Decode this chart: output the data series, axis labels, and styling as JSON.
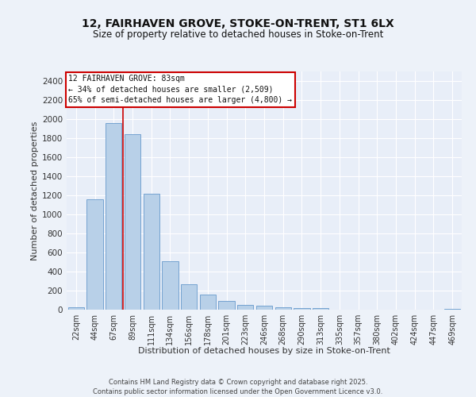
{
  "title_line1": "12, FAIRHAVEN GROVE, STOKE-ON-TRENT, ST1 6LX",
  "title_line2": "Size of property relative to detached houses in Stoke-on-Trent",
  "xlabel": "Distribution of detached houses by size in Stoke-on-Trent",
  "ylabel": "Number of detached properties",
  "categories": [
    "22sqm",
    "44sqm",
    "67sqm",
    "89sqm",
    "111sqm",
    "134sqm",
    "156sqm",
    "178sqm",
    "201sqm",
    "223sqm",
    "246sqm",
    "268sqm",
    "290sqm",
    "313sqm",
    "335sqm",
    "357sqm",
    "380sqm",
    "402sqm",
    "424sqm",
    "447sqm",
    "469sqm"
  ],
  "values": [
    25,
    1155,
    1960,
    1840,
    1220,
    510,
    270,
    155,
    90,
    47,
    38,
    25,
    15,
    18,
    0,
    0,
    0,
    0,
    0,
    0,
    10
  ],
  "bar_color": "#b8d0e8",
  "bar_edge_color": "#6699cc",
  "bg_color": "#e8eef8",
  "grid_color": "#ffffff",
  "vline_color": "#cc0000",
  "vline_pos": 2.5,
  "annotation_text": "12 FAIRHAVEN GROVE: 83sqm\n← 34% of detached houses are smaller (2,509)\n65% of semi-detached houses are larger (4,800) →",
  "annotation_box_color": "#cc0000",
  "fig_bg_color": "#edf2f9",
  "ylim": [
    0,
    2500
  ],
  "yticks": [
    0,
    200,
    400,
    600,
    800,
    1000,
    1200,
    1400,
    1600,
    1800,
    2000,
    2200,
    2400
  ],
  "footnote": "Contains HM Land Registry data © Crown copyright and database right 2025.\nContains public sector information licensed under the Open Government Licence v3.0."
}
